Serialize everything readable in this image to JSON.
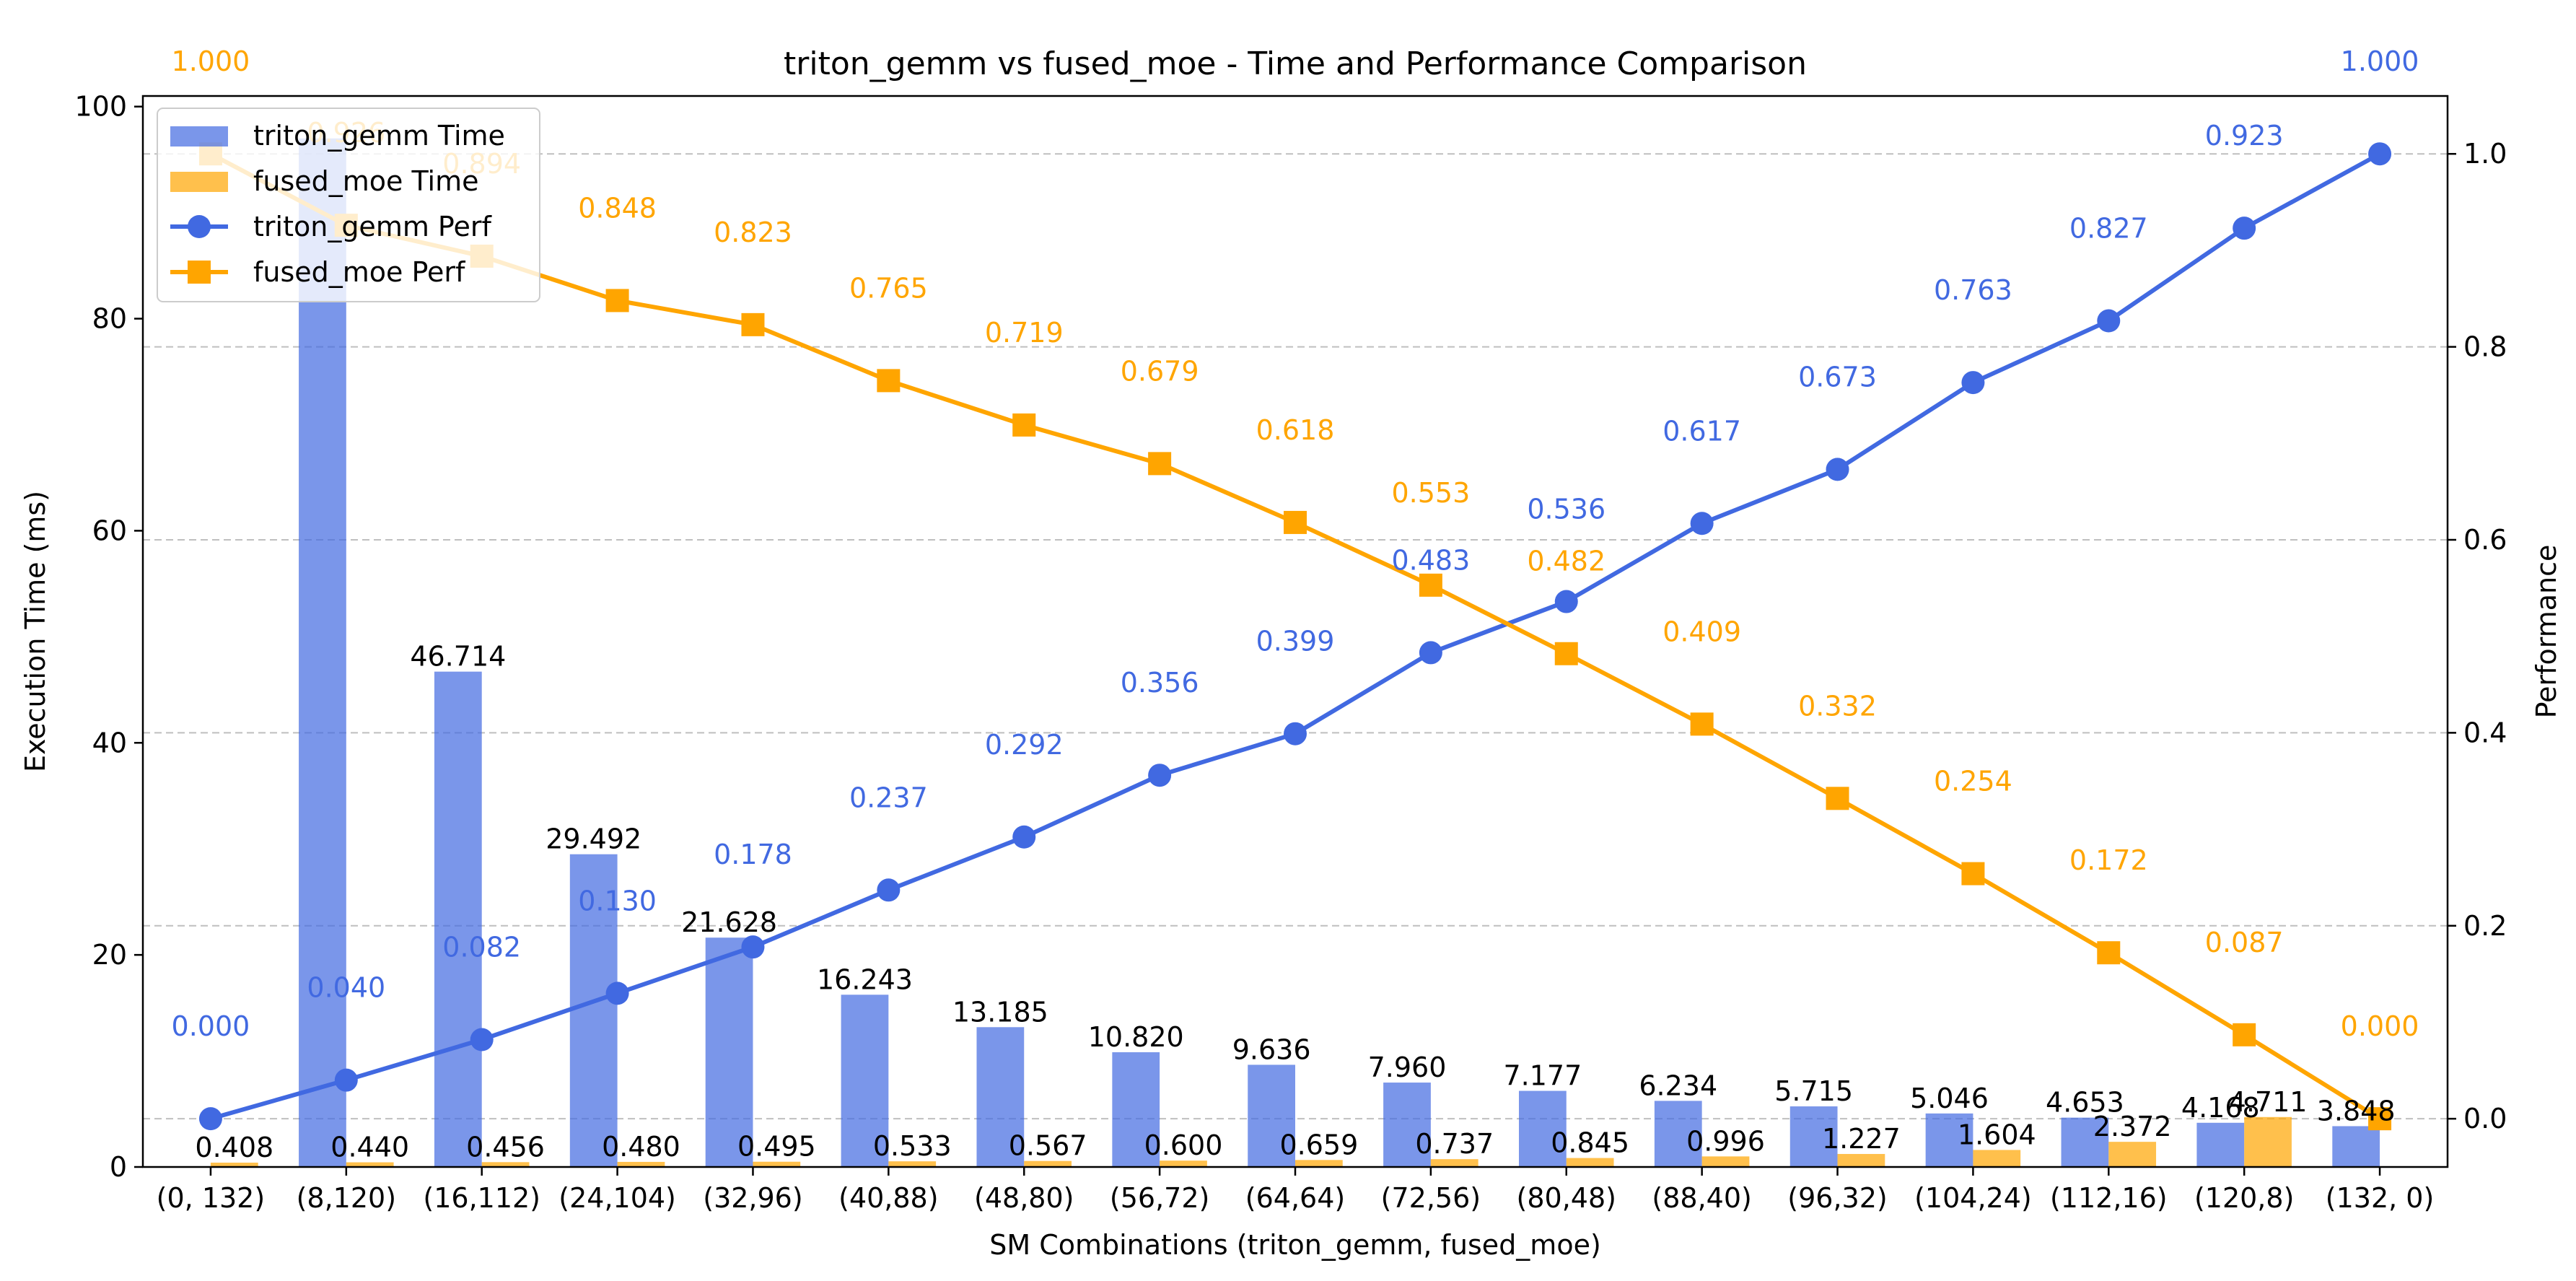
{
  "chart_data": {
    "type": "bar+line",
    "title": "triton_gemm vs fused_moe - Time and Performance Comparison",
    "xlabel": "SM Combinations (triton_gemm, fused_moe)",
    "ylabel_left": "Execution Time (ms)",
    "ylabel_right": "Performance",
    "categories": [
      "(0, 132)",
      "(8,120)",
      "(16,112)",
      "(24,104)",
      "(32,96)",
      "(40,88)",
      "(48,80)",
      "(56,72)",
      "(64,64)",
      "(72,56)",
      "(80,48)",
      "(88,40)",
      "(96,32)",
      "(104,24)",
      "(112,16)",
      "(120,8)",
      "(132, 0)"
    ],
    "ylim_left": [
      0,
      101
    ],
    "ylim_right": [
      -0.05,
      1.06
    ],
    "yticks_left": [
      0,
      20,
      40,
      60,
      80,
      100
    ],
    "yticks_right": [
      0.0,
      0.2,
      0.4,
      0.6,
      0.8,
      1.0
    ],
    "grid": "horizontal dashed (right axis)",
    "legend_position": "top-left",
    "bars": [
      {
        "name": "triton_gemm Time",
        "color": "#4169e1",
        "values": [
          0,
          97.0,
          46.714,
          29.492,
          21.628,
          16.243,
          13.185,
          10.82,
          9.636,
          7.96,
          7.177,
          6.234,
          5.715,
          5.046,
          4.653,
          4.168,
          3.848
        ],
        "labels": [
          "",
          "",
          "46.714",
          "29.492",
          "21.628",
          "16.243",
          "13.185",
          "10.820",
          "9.636",
          "7.960",
          "7.177",
          "6.234",
          "5.715",
          "5.046",
          "4.653",
          "4.168",
          "3.848"
        ]
      },
      {
        "name": "fused_moe Time",
        "color": "#ffa500",
        "values": [
          0.408,
          0.44,
          0.456,
          0.48,
          0.495,
          0.533,
          0.567,
          0.6,
          0.659,
          0.737,
          0.845,
          0.996,
          1.227,
          1.604,
          2.372,
          4.711,
          0
        ],
        "labels": [
          "0.408",
          "0.440",
          "0.456",
          "0.480",
          "0.495",
          "0.533",
          "0.567",
          "0.600",
          "0.659",
          "0.737",
          "0.845",
          "0.996",
          "1.227",
          "1.604",
          "2.372",
          "4.711",
          ""
        ]
      }
    ],
    "lines": [
      {
        "name": "triton_gemm Perf",
        "color": "#4169e1",
        "marker": "circle",
        "values": [
          0.0,
          0.04,
          0.082,
          0.13,
          0.178,
          0.237,
          0.292,
          0.356,
          0.399,
          0.483,
          0.536,
          0.617,
          0.673,
          0.763,
          0.827,
          0.923,
          1.0
        ],
        "labels": [
          "0.000",
          "0.040",
          "0.082",
          "0.130",
          "0.178",
          "0.237",
          "0.292",
          "0.356",
          "0.399",
          "0.483",
          "0.536",
          "0.617",
          "0.673",
          "0.763",
          "0.827",
          "0.923",
          "1.000"
        ]
      },
      {
        "name": "fused_moe Perf",
        "color": "#ffa500",
        "marker": "square",
        "values": [
          1.0,
          0.926,
          0.894,
          0.848,
          0.823,
          0.765,
          0.719,
          0.679,
          0.618,
          0.553,
          0.482,
          0.409,
          0.332,
          0.254,
          0.172,
          0.087,
          0.0
        ],
        "labels": [
          "1.000",
          "0.926",
          "0.894",
          "0.848",
          "0.823",
          "0.765",
          "0.719",
          "0.679",
          "0.618",
          "0.553",
          "0.482",
          "0.409",
          "0.332",
          "0.254",
          "0.172",
          "0.087",
          "0.000"
        ]
      }
    ]
  }
}
